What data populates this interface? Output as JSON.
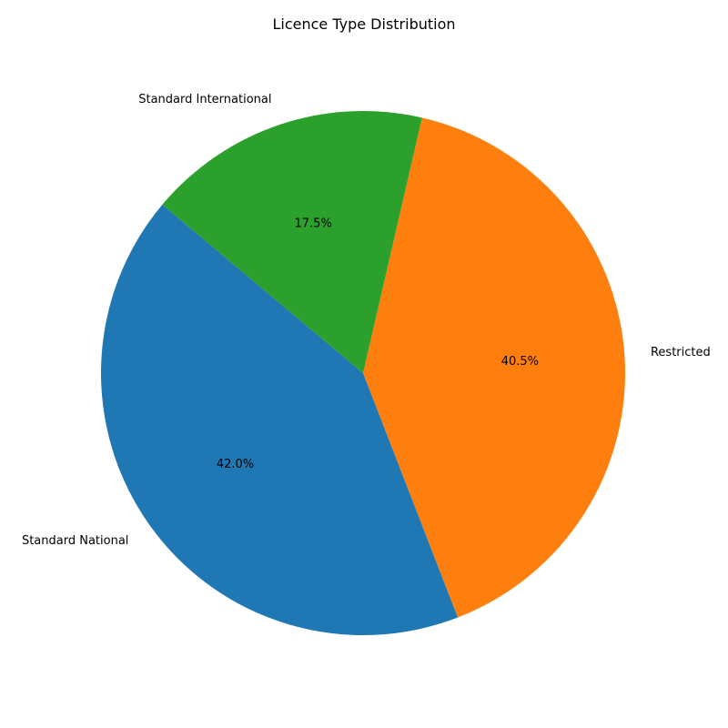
{
  "chart_data": {
    "type": "pie",
    "title": "Licence Type Distribution",
    "start_angle_deg": 140,
    "direction": "counterclockwise",
    "slices": [
      {
        "label": "Standard National",
        "value": 42.0,
        "pct_label": "42.0%",
        "color": "#1f77b4"
      },
      {
        "label": "Restricted",
        "value": 40.5,
        "pct_label": "40.5%",
        "color": "#ff7f0e"
      },
      {
        "label": "Standard International",
        "value": 17.5,
        "pct_label": "17.5%",
        "color": "#2ca02c"
      }
    ]
  }
}
